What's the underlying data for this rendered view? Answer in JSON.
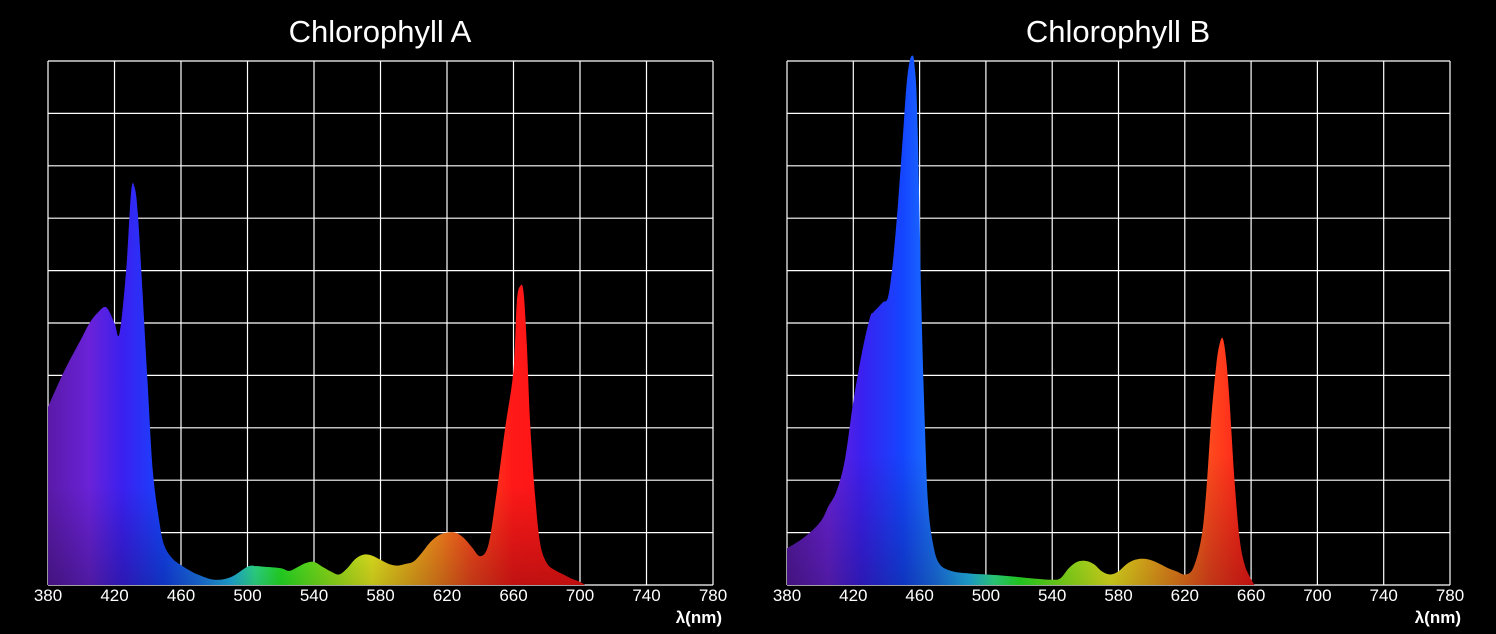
{
  "chart_data": [
    {
      "type": "area",
      "title": "Chlorophyll A",
      "xlabel": "λ(nm)",
      "ylabel": "",
      "xlim": [
        380,
        780
      ],
      "ylim": [
        0,
        10
      ],
      "grid": true,
      "x_ticks": [
        "380",
        "420",
        "460",
        "500",
        "540",
        "580",
        "620",
        "660",
        "700",
        "740",
        "780"
      ],
      "fill": "spectral wavelength colors",
      "series": [
        {
          "x": [
            380,
            390,
            400,
            405,
            410,
            415,
            420,
            423,
            427,
            430,
            432,
            434,
            437,
            440,
            443,
            447,
            450,
            455,
            460,
            465,
            470,
            480,
            490,
            500,
            505,
            510,
            520,
            525,
            530,
            535,
            540,
            545,
            550,
            555,
            560,
            565,
            570,
            575,
            580,
            585,
            590,
            595,
            600,
            605,
            610,
            615,
            620,
            625,
            630,
            635,
            640,
            645,
            650,
            655,
            660,
            662,
            664,
            666,
            668,
            670,
            673,
            676,
            680,
            685,
            690,
            695,
            700,
            703
          ],
          "y": [
            3.4,
            4.1,
            4.7,
            5.0,
            5.2,
            5.3,
            5.0,
            4.8,
            6.0,
            7.5,
            7.6,
            7.1,
            5.5,
            3.8,
            2.2,
            1.2,
            0.75,
            0.5,
            0.38,
            0.28,
            0.2,
            0.1,
            0.15,
            0.35,
            0.36,
            0.35,
            0.32,
            0.27,
            0.34,
            0.42,
            0.44,
            0.35,
            0.26,
            0.2,
            0.32,
            0.5,
            0.58,
            0.56,
            0.48,
            0.4,
            0.37,
            0.4,
            0.45,
            0.62,
            0.82,
            0.95,
            1.0,
            1.0,
            0.9,
            0.72,
            0.55,
            0.78,
            1.8,
            3.0,
            4.1,
            5.4,
            5.7,
            5.6,
            4.6,
            3.1,
            1.7,
            0.8,
            0.42,
            0.28,
            0.2,
            0.12,
            0.06,
            0.0
          ]
        }
      ]
    },
    {
      "type": "area",
      "title": "Chlorophyll B",
      "xlabel": "λ(nm)",
      "ylabel": "",
      "xlim": [
        380,
        780
      ],
      "ylim": [
        0,
        10
      ],
      "grid": true,
      "x_ticks": [
        "380",
        "420",
        "460",
        "500",
        "540",
        "580",
        "620",
        "660",
        "700",
        "740",
        "780"
      ],
      "fill": "spectral wavelength colors",
      "series": [
        {
          "x": [
            380,
            390,
            400,
            405,
            410,
            415,
            420,
            425,
            430,
            432,
            435,
            438,
            441,
            444,
            447,
            450,
            452,
            454,
            456,
            457,
            458,
            459,
            460,
            461,
            463,
            465,
            468,
            472,
            480,
            490,
            500,
            510,
            520,
            530,
            540,
            545,
            550,
            555,
            560,
            565,
            570,
            575,
            580,
            585,
            590,
            595,
            600,
            605,
            610,
            615,
            620,
            625,
            630,
            633,
            636,
            639,
            641,
            643,
            645,
            647,
            650,
            653,
            656,
            659,
            662
          ],
          "y": [
            0.7,
            0.9,
            1.2,
            1.5,
            1.8,
            2.4,
            3.5,
            4.4,
            5.1,
            5.2,
            5.3,
            5.4,
            5.5,
            6.2,
            7.3,
            8.6,
            9.5,
            10.0,
            10.1,
            9.9,
            9.5,
            8.5,
            7.0,
            5.4,
            3.2,
            1.6,
            0.8,
            0.4,
            0.26,
            0.22,
            0.2,
            0.18,
            0.15,
            0.12,
            0.1,
            0.13,
            0.32,
            0.44,
            0.46,
            0.4,
            0.26,
            0.2,
            0.26,
            0.4,
            0.48,
            0.5,
            0.47,
            0.4,
            0.32,
            0.26,
            0.2,
            0.32,
            0.9,
            1.8,
            3.2,
            4.2,
            4.6,
            4.7,
            4.3,
            3.5,
            2.0,
            0.9,
            0.4,
            0.17,
            0.0
          ]
        }
      ]
    }
  ]
}
